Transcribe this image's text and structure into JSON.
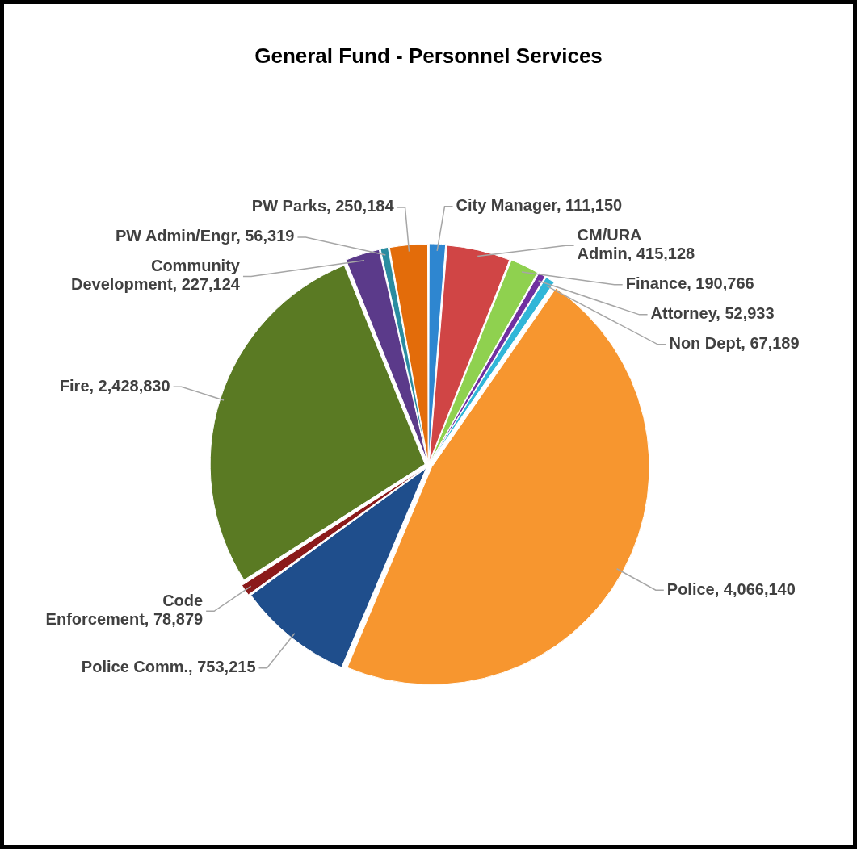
{
  "chart_data": {
    "type": "pie",
    "title": "General Fund - Personnel Services",
    "categories": [
      "City Manager",
      "CM/URA Admin",
      "Finance",
      "Attorney",
      "Non Dept",
      "Police",
      "Police Comm.",
      "Code Enforcement",
      "Fire",
      "Community Development",
      "PW Admin/Engr",
      "PW Parks"
    ],
    "values": [
      111150,
      415128,
      190766,
      52933,
      67189,
      4066140,
      753215,
      78879,
      2428830,
      227124,
      56319,
      250184
    ],
    "value_labels": [
      "111,150",
      "415,128",
      "190,766",
      "52,933",
      "67,189",
      "4,066,140",
      "753,215",
      "78,879",
      "2,428,830",
      "227,124",
      "56,319",
      "250,184"
    ],
    "colors": [
      "#2e86d0",
      "#d04545",
      "#8fd14f",
      "#7030a0",
      "#31b6d8",
      "#f7962f",
      "#1f4e8c",
      "#8b1a1a",
      "#5a7a23",
      "#5b3a8a",
      "#2a8ca0",
      "#e36c0a"
    ],
    "legend": false
  }
}
